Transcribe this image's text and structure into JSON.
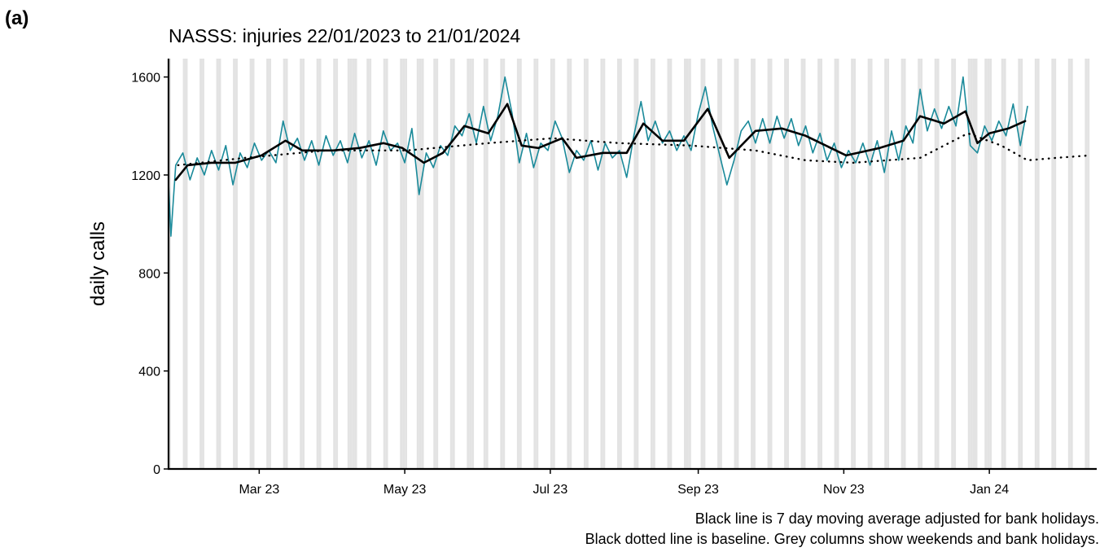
{
  "panel_label": "(a)",
  "chart_data": {
    "type": "line",
    "title": "NASSS: injuries 22/01/2023 to 21/01/2024",
    "ylabel": "daily calls",
    "notes": [
      "Black line is 7 day moving average adjusted for bank holidays.",
      "Black dotted line is baseline. Grey columns show weekends and bank holidays."
    ],
    "xlim": [
      0,
      389
    ],
    "ylim": [
      0,
      1675
    ],
    "yticks": [
      0,
      400,
      800,
      1200,
      1600
    ],
    "xticks": [
      {
        "value": 38,
        "label": "Mar 23"
      },
      {
        "value": 99,
        "label": "May 23"
      },
      {
        "value": 160,
        "label": "Jul 23"
      },
      {
        "value": 222,
        "label": "Sep 23"
      },
      {
        "value": 283,
        "label": "Nov 23"
      },
      {
        "value": 344,
        "label": "Jan 24"
      }
    ],
    "shade_color": "#e3e3e3",
    "bank_holidays": [
      75,
      78,
      99,
      106,
      127,
      218,
      337,
      338,
      344
    ],
    "series": [
      {
        "color": "#1a8a9a",
        "style": "solid",
        "width": 1.6,
        "x": [
          0,
          1,
          3,
          6,
          9,
          12,
          15,
          18,
          21,
          24,
          27,
          30,
          33,
          36,
          39,
          42,
          45,
          48,
          51,
          54,
          57,
          60,
          63,
          66,
          69,
          72,
          75,
          78,
          81,
          84,
          87,
          90,
          93,
          96,
          99,
          102,
          105,
          108,
          111,
          114,
          117,
          120,
          123,
          126,
          129,
          132,
          135,
          138,
          141,
          144,
          147,
          150,
          153,
          156,
          159,
          162,
          165,
          168,
          171,
          174,
          177,
          180,
          183,
          186,
          189,
          192,
          195,
          198,
          201,
          204,
          207,
          210,
          213,
          216,
          219,
          222,
          225,
          228,
          231,
          234,
          237,
          240,
          243,
          246,
          249,
          252,
          255,
          258,
          261,
          264,
          267,
          270,
          273,
          276,
          279,
          282,
          285,
          288,
          291,
          294,
          297,
          300,
          303,
          306,
          309,
          312,
          315,
          318,
          321,
          324,
          327,
          330,
          333,
          336,
          339,
          342,
          345,
          348,
          351,
          354,
          357,
          360
        ],
        "values": [
          1170,
          950,
          1240,
          1290,
          1180,
          1270,
          1200,
          1300,
          1220,
          1320,
          1160,
          1290,
          1230,
          1330,
          1260,
          1300,
          1250,
          1420,
          1300,
          1350,
          1260,
          1340,
          1240,
          1360,
          1280,
          1340,
          1250,
          1370,
          1270,
          1340,
          1240,
          1380,
          1300,
          1330,
          1250,
          1390,
          1120,
          1290,
          1230,
          1320,
          1280,
          1400,
          1360,
          1450,
          1330,
          1480,
          1340,
          1440,
          1600,
          1450,
          1250,
          1370,
          1230,
          1330,
          1300,
          1420,
          1350,
          1210,
          1300,
          1260,
          1340,
          1220,
          1330,
          1270,
          1300,
          1190,
          1360,
          1500,
          1340,
          1420,
          1330,
          1380,
          1300,
          1360,
          1300,
          1450,
          1560,
          1400,
          1280,
          1160,
          1260,
          1380,
          1420,
          1330,
          1430,
          1330,
          1440,
          1350,
          1430,
          1320,
          1400,
          1290,
          1370,
          1260,
          1330,
          1230,
          1300,
          1250,
          1330,
          1240,
          1340,
          1210,
          1380,
          1260,
          1400,
          1330,
          1550,
          1380,
          1470,
          1390,
          1480,
          1400,
          1600,
          1320,
          1290,
          1400,
          1340,
          1420,
          1360,
          1490,
          1320,
          1480
        ]
      },
      {
        "color": "#000000",
        "style": "solid",
        "width": 2.6,
        "x": [
          3,
          8,
          18,
          28,
          39,
          49,
          56,
          69,
          80,
          90,
          98,
          107,
          115,
          124,
          134,
          142,
          148,
          155,
          165,
          171,
          182,
          192,
          199,
          207,
          216,
          226,
          235,
          246,
          257,
          267,
          284,
          298,
          308,
          315,
          325,
          334,
          339,
          344,
          352,
          359
        ],
        "values": [
          1180,
          1240,
          1250,
          1250,
          1280,
          1340,
          1300,
          1300,
          1310,
          1330,
          1310,
          1250,
          1290,
          1400,
          1370,
          1490,
          1320,
          1310,
          1350,
          1270,
          1290,
          1290,
          1410,
          1340,
          1340,
          1470,
          1270,
          1380,
          1390,
          1360,
          1280,
          1310,
          1340,
          1440,
          1410,
          1460,
          1330,
          1370,
          1390,
          1420
        ]
      },
      {
        "color": "#000000",
        "style": "dotted",
        "width": 2.4,
        "x": [
          4,
          32,
          66,
          100,
          134,
          161,
          189,
          219,
          246,
          267,
          287,
          315,
          335,
          349,
          360,
          372,
          386
        ],
        "values": [
          1240,
          1270,
          1300,
          1300,
          1330,
          1350,
          1330,
          1320,
          1300,
          1260,
          1250,
          1270,
          1370,
          1320,
          1260,
          1270,
          1280
        ]
      }
    ]
  }
}
